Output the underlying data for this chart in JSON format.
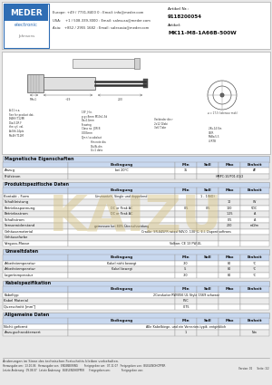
{
  "bg_color": "#f0f0f0",
  "header": {
    "logo_text": "MEDER",
    "logo_sub": "electronic",
    "logo_bg": "#2e6db4",
    "contact_europe": "Europe: +49 / 7731-8400 0 : Email: info@meder.com",
    "contact_usa": "USA:    +1 / 508-339-3000 : Email: salesusa@meder.com",
    "contact_asia": "Asia:   +852 / 2955 1682 : Email: salesasia@meder.com",
    "artikel_nr_label": "Artikel Nr.:",
    "artikel_nr": "9118200054",
    "artikel_label": "Artikel:",
    "artikel": "MK11-M8-1A66B-500W"
  },
  "tables": [
    {
      "title": "Magnetische Eigenschaften",
      "rows": [
        [
          "Anzug",
          "bei 20°C",
          "35",
          "",
          "",
          "AT"
        ],
        [
          "Prüfstrom",
          "",
          "",
          "",
          "HMPC:10/P01:01/2",
          ""
        ]
      ]
    },
    {
      "title": "Produktspezifische Daten",
      "rows": [
        [
          "Kontakt - Form",
          "Ummantelt; Single und doppelend",
          "",
          "1 - 1(NO)",
          "",
          ""
        ],
        [
          "Schaltleistung",
          "",
          "",
          "",
          "10",
          "W"
        ],
        [
          "Betriebsspannung",
          "DC or Peak AC",
          "0,5",
          "0,5",
          "100",
          "VDC"
        ],
        [
          "Betriebsstrom",
          "DC or Peak AC",
          "",
          "",
          "1,25",
          "A"
        ],
        [
          "Schaltstrom",
          "",
          "",
          "",
          "0,5",
          "A"
        ],
        [
          "Sensorwiderstand",
          "gemessen bei 80% Überschneidung",
          "",
          "",
          "200",
          "mΩ/m"
        ],
        [
          "Gehäusematerial",
          "",
          "Cradle: SR-845FR rated 94V-0, 130°C, E.I. Dupont softrans",
          "",
          "",
          ""
        ],
        [
          "Gehäusefarbe",
          "",
          "",
          "",
          "",
          ""
        ],
        [
          "Verguss-Masse",
          "",
          "Volkan: CE 13 FW-UL",
          "",
          "",
          ""
        ]
      ]
    },
    {
      "title": "Umweltdaten",
      "rows": [
        [
          "Arbeitstemperatur",
          "Kabel nicht bewegt",
          "-30",
          "",
          "80",
          "°C"
        ],
        [
          "Arbeitstemperatur",
          "Kabel bewegt",
          "-5",
          "",
          "80",
          "°C"
        ],
        [
          "Lagertemperatur",
          "",
          "-30",
          "",
          "80",
          "°C"
        ]
      ]
    },
    {
      "title": "Kabelspezifikation",
      "rows": [
        [
          "Kabeltyp",
          "",
          "2Conductor RW/056 UL Style 1569 schwarz",
          "",
          "",
          ""
        ],
        [
          "Kabel Material",
          "",
          "PVC",
          "",
          "",
          ""
        ],
        [
          "Querschnitt [mm²]",
          "",
          "0,75",
          "",
          "",
          ""
        ]
      ]
    },
    {
      "title": "Allgemeine Daten",
      "rows": [
        [
          "Nicht geformt",
          "",
          "Alle Kabelbiege- und ein Vorserien-typik. entginklich",
          "",
          "",
          ""
        ],
        [
          "Anzugscharakterwert",
          "",
          "1",
          "",
          "",
          "Nm"
        ]
      ]
    }
  ],
  "col_headers": [
    "Bedingung",
    "Min",
    "Soll",
    "Max",
    "Einheit"
  ],
  "footer": {
    "line1": "Änderungen im Sinne des technischen Fortschritts bleiben vorbehalten.",
    "row1": "Herausgabe am:  13.10.06   Herausgabe von:  ENGINEERING        Freigegeben am:  07.11.07   Freigegeben von:  BUELENOHOPPER",
    "row2": "Letzte Änderung:  09.08.07   Letzte Änderung:  BUELENOHOPPER      Freigegeben am:              Freigegeben von:",
    "right": "Version: 02      Seite: 1/2"
  }
}
